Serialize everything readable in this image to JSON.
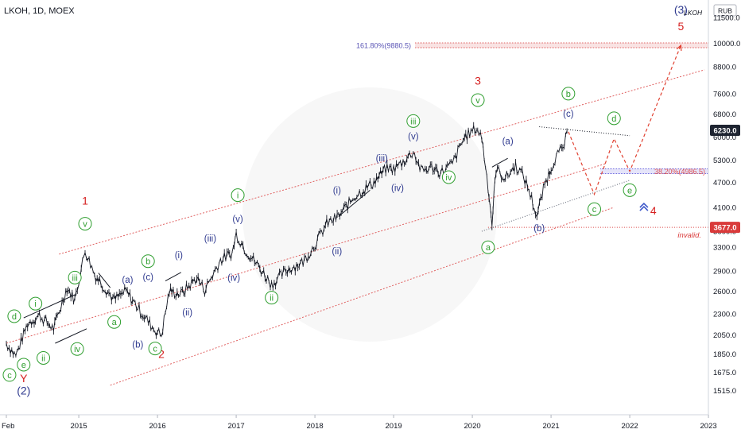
{
  "header": {
    "title": "LKOH, 1D, MOEX"
  },
  "corner_ticker": "LKOH",
  "currency_badge": "RUB",
  "chart_data": {
    "type": "line",
    "title": "LKOH, 1D, MOEX",
    "xlabel": "",
    "ylabel": "",
    "y_scale": "log",
    "ylim": [
      1400,
      12000
    ],
    "xlim": [
      2014.08,
      2023.08
    ],
    "grid": false,
    "x_ticks": [
      "Feb",
      "2015",
      "2016",
      "2017",
      "2018",
      "2019",
      "2020",
      "2021",
      "2022",
      "2023"
    ],
    "x_tick_values": [
      2014.08,
      2015,
      2016,
      2017,
      2018,
      2019,
      2020,
      2021,
      2022,
      2023
    ],
    "y_ticks": [
      11500,
      10000,
      8800,
      7600,
      6800,
      6000,
      5300,
      4700,
      4100,
      3600,
      3300,
      2900,
      2600,
      2300,
      2050,
      1850,
      1675,
      1515
    ],
    "y_tick_labels": [
      "11500.0",
      "10000.0",
      "8800.0",
      "7600.0",
      "6800.0",
      "6000.0",
      "5300.0",
      "4700.0",
      "4100.0",
      "3600.0",
      "3300.0",
      "2900.0",
      "2600.0",
      "2300.0",
      "2050.0",
      "1850.0",
      "1675.0",
      "1515.0"
    ],
    "price_path": [
      [
        2014.08,
        1960
      ],
      [
        2014.2,
        1830
      ],
      [
        2014.35,
        2180
      ],
      [
        2014.5,
        2280
      ],
      [
        2014.68,
        2120
      ],
      [
        2014.85,
        2650
      ],
      [
        2014.95,
        2480
      ],
      [
        2015.08,
        3250
      ],
      [
        2015.2,
        2850
      ],
      [
        2015.45,
        2480
      ],
      [
        2015.6,
        2600
      ],
      [
        2015.75,
        2380
      ],
      [
        2015.95,
        2120
      ],
      [
        2016.05,
        2050
      ],
      [
        2016.15,
        2600
      ],
      [
        2016.3,
        2560
      ],
      [
        2016.5,
        2800
      ],
      [
        2016.6,
        2620
      ],
      [
        2016.8,
        3080
      ],
      [
        2016.95,
        3200
      ],
      [
        2017.0,
        3550
      ],
      [
        2017.12,
        3250
      ],
      [
        2017.3,
        2950
      ],
      [
        2017.45,
        2700
      ],
      [
        2017.65,
        2920
      ],
      [
        2017.85,
        3050
      ],
      [
        2018.0,
        3350
      ],
      [
        2018.15,
        3750
      ],
      [
        2018.3,
        3900
      ],
      [
        2018.5,
        4350
      ],
      [
        2018.75,
        4700
      ],
      [
        2018.9,
        5050
      ],
      [
        2019.0,
        5050
      ],
      [
        2019.12,
        5250
      ],
      [
        2019.25,
        5550
      ],
      [
        2019.35,
        5000
      ],
      [
        2019.5,
        5100
      ],
      [
        2019.6,
        4950
      ],
      [
        2019.75,
        5200
      ],
      [
        2019.9,
        6000
      ],
      [
        2020.05,
        6300
      ],
      [
        2020.12,
        6000
      ],
      [
        2020.2,
        4600
      ],
      [
        2020.25,
        3750
      ],
      [
        2020.3,
        5050
      ],
      [
        2020.42,
        4800
      ],
      [
        2020.55,
        5150
      ],
      [
        2020.65,
        4850
      ],
      [
        2020.72,
        4500
      ],
      [
        2020.82,
        3900
      ],
      [
        2020.92,
        4650
      ],
      [
        2021.05,
        5350
      ],
      [
        2021.15,
        5650
      ],
      [
        2021.22,
        6180
      ]
    ],
    "projection_path": [
      [
        2021.22,
        6180
      ],
      [
        2021.55,
        4400
      ],
      [
        2021.8,
        5950
      ],
      [
        2022.0,
        4986.5
      ],
      [
        2022.65,
        9880.5
      ]
    ],
    "channel_lines": [
      {
        "from": [
          2014.75,
          3180
        ],
        "to": [
          2022.95,
          8650
        ]
      },
      {
        "from": [
          2014.08,
          1960
        ],
        "to": [
          2021.7,
          5200
        ]
      },
      {
        "from": [
          2015.4,
          1560
        ],
        "to": [
          2021.8,
          4100
        ]
      }
    ],
    "fib_levels": [
      {
        "label": "161.80%(9880.5)",
        "value": 9880.5,
        "color": "#5b55b5",
        "band_color": "#e06666"
      },
      {
        "label": "38.20%(4986.5)",
        "value": 4986.5,
        "color": "#e05555",
        "band_color": "#6e6ae0"
      }
    ],
    "price_labels": [
      {
        "text": "6230.0",
        "value": 6230,
        "bg": "#1e2431",
        "fg": "#ffffff"
      },
      {
        "text": "3677.0",
        "value": 3677,
        "bg": "#d93a3a",
        "fg": "#ffffff"
      }
    ],
    "invalid_level": {
      "label": "invalid.",
      "value": 3677,
      "color": "#d93a3a"
    },
    "wave_labels": [
      {
        "text": "1",
        "x": 2015.08,
        "y": 4250,
        "style": "red"
      },
      {
        "text": "2",
        "x": 2016.05,
        "y": 1850,
        "style": "red"
      },
      {
        "text": "3",
        "x": 2020.07,
        "y": 8150,
        "style": "red"
      },
      {
        "text": "4",
        "x": 2022.3,
        "y": 4030,
        "style": "red"
      },
      {
        "text": "5",
        "x": 2022.65,
        "y": 10950,
        "style": "red"
      },
      {
        "text": "(3)",
        "x": 2022.65,
        "y": 12000,
        "style": "navy"
      },
      {
        "text": "(2)",
        "x": 2014.3,
        "y": 1515,
        "style": "navy"
      },
      {
        "text": "Y",
        "x": 2014.3,
        "y": 1620,
        "style": "red"
      },
      {
        "text": "v",
        "x": 2015.08,
        "y": 3750,
        "style": "green"
      },
      {
        "text": "iii",
        "x": 2014.95,
        "y": 2800,
        "style": "green"
      },
      {
        "text": "i",
        "x": 2014.45,
        "y": 2430,
        "style": "green"
      },
      {
        "text": "d",
        "x": 2014.18,
        "y": 2270,
        "style": "green"
      },
      {
        "text": "e",
        "x": 2014.3,
        "y": 1745,
        "style": "green"
      },
      {
        "text": "c",
        "x": 2014.12,
        "y": 1650,
        "style": "green"
      },
      {
        "text": "ii",
        "x": 2014.55,
        "y": 1810,
        "style": "green"
      },
      {
        "text": "iv",
        "x": 2014.98,
        "y": 1900,
        "style": "green"
      },
      {
        "text": "(a)",
        "x": 2015.62,
        "y": 2780,
        "style": "navy"
      },
      {
        "text": "(b)",
        "x": 2015.75,
        "y": 1955,
        "style": "navy"
      },
      {
        "text": "(c)",
        "x": 2015.88,
        "y": 2820,
        "style": "navy"
      },
      {
        "text": "a",
        "x": 2015.45,
        "y": 2200,
        "style": "green"
      },
      {
        "text": "b",
        "x": 2015.88,
        "y": 3060,
        "style": "green"
      },
      {
        "text": "c",
        "x": 2015.97,
        "y": 1905,
        "style": "green"
      },
      {
        "text": "(i)",
        "x": 2016.27,
        "y": 3180,
        "style": "navy"
      },
      {
        "text": "(ii)",
        "x": 2016.38,
        "y": 2330,
        "style": "navy"
      },
      {
        "text": "(iii)",
        "x": 2016.67,
        "y": 3480,
        "style": "navy"
      },
      {
        "text": "(iv)",
        "x": 2016.97,
        "y": 2810,
        "style": "navy"
      },
      {
        "text": "(v)",
        "x": 2017.02,
        "y": 3870,
        "style": "navy"
      },
      {
        "text": "i",
        "x": 2017.02,
        "y": 4380,
        "style": "green"
      },
      {
        "text": "ii",
        "x": 2017.45,
        "y": 2510,
        "style": "green"
      },
      {
        "text": "(i)",
        "x": 2018.28,
        "y": 4520,
        "style": "navy"
      },
      {
        "text": "(ii)",
        "x": 2018.28,
        "y": 3250,
        "style": "navy"
      },
      {
        "text": "(iii)",
        "x": 2018.85,
        "y": 5380,
        "style": "navy"
      },
      {
        "text": "(iv)",
        "x": 2019.05,
        "y": 4580,
        "style": "navy"
      },
      {
        "text": "(v)",
        "x": 2019.25,
        "y": 6050,
        "style": "navy"
      },
      {
        "text": "iii",
        "x": 2019.25,
        "y": 6550,
        "style": "green"
      },
      {
        "text": "iv",
        "x": 2019.7,
        "y": 4830,
        "style": "green"
      },
      {
        "text": "v",
        "x": 2020.07,
        "y": 7340,
        "style": "green"
      },
      {
        "text": "(a)",
        "x": 2020.45,
        "y": 5900,
        "style": "navy"
      },
      {
        "text": "a",
        "x": 2020.2,
        "y": 3300,
        "style": "green"
      },
      {
        "text": "(b)",
        "x": 2020.85,
        "y": 3680,
        "style": "navy"
      },
      {
        "text": "b",
        "x": 2021.22,
        "y": 7600,
        "style": "green"
      },
      {
        "text": "(c)",
        "x": 2021.22,
        "y": 6850,
        "style": "navy"
      },
      {
        "text": "c",
        "x": 2021.55,
        "y": 4060,
        "style": "green"
      },
      {
        "text": "d",
        "x": 2021.8,
        "y": 6650,
        "style": "green"
      },
      {
        "text": "e",
        "x": 2022.0,
        "y": 4500,
        "style": "green"
      }
    ],
    "colors": {
      "candles": "#131722",
      "channel": "#e06060",
      "wave_red": "#d62020",
      "wave_navy": "#2f3a8f",
      "wave_green": "#2e9e2e",
      "projection": "#e04030",
      "triangle_top": "#131722",
      "triangle_bottom": "#5a6070"
    }
  }
}
